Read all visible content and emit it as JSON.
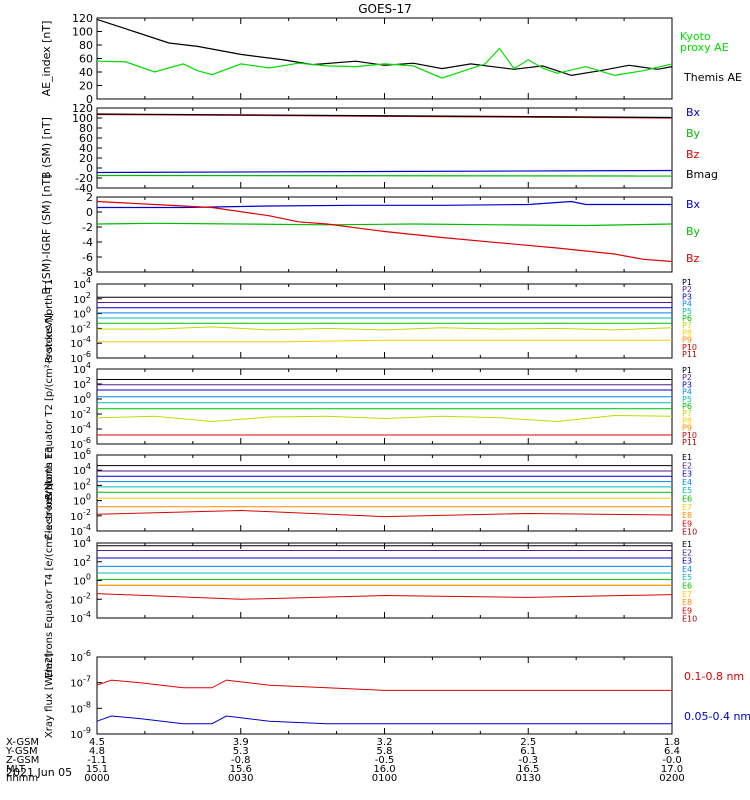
{
  "title": "GOES-17",
  "date_label": "2021 Jun 05",
  "ephemeris": {
    "row_labels": [
      "X-GSM",
      "Y-GSM",
      "Z-GSM",
      "MLT",
      "hhmm"
    ],
    "columns": [
      [
        "4.5",
        "4.8",
        "-1.1",
        "15.1",
        "0000"
      ],
      [
        "3.9",
        "5.3",
        "-0.8",
        "15.6",
        "0030"
      ],
      [
        "3.2",
        "5.8",
        "-0.5",
        "16.0",
        "0100"
      ],
      [
        "2.5",
        "6.1",
        "-0.3",
        "16.5",
        "0130"
      ],
      [
        "1.8",
        "6.4",
        "-0.0",
        "17.0",
        "0200"
      ]
    ]
  },
  "chart_data": [
    {
      "type": "line",
      "ylabel": "AE_index [nT]",
      "ylim": [
        0,
        120
      ],
      "yticks": [
        "0",
        "20",
        "40",
        "60",
        "80",
        "100",
        "120"
      ],
      "x_range_hours": [
        0,
        2
      ],
      "series": [
        {
          "name": "Themis AE",
          "color": "#000000",
          "x": [
            0,
            0.15,
            0.25,
            0.35,
            0.5,
            0.65,
            0.75,
            0.9,
            1.0,
            1.1,
            1.2,
            1.3,
            1.45,
            1.55,
            1.65,
            1.75,
            1.85,
            1.95,
            2.0
          ],
          "values": [
            118,
            97,
            83,
            78,
            66,
            58,
            51,
            56,
            50,
            53,
            45,
            52,
            44,
            49,
            35,
            42,
            50,
            44,
            48
          ]
        },
        {
          "name": "Kyoto proxy AE",
          "color": "#00dd00",
          "x": [
            0,
            0.1,
            0.2,
            0.3,
            0.35,
            0.4,
            0.5,
            0.6,
            0.7,
            0.8,
            0.9,
            1.0,
            1.1,
            1.2,
            1.3,
            1.35,
            1.4,
            1.45,
            1.5,
            1.55,
            1.6,
            1.7,
            1.8,
            1.9,
            2.0
          ],
          "values": [
            56,
            55,
            40,
            52,
            42,
            36,
            52,
            46,
            53,
            49,
            48,
            52,
            49,
            31,
            45,
            52,
            75,
            45,
            58,
            46,
            38,
            48,
            35,
            42,
            52
          ]
        }
      ]
    },
    {
      "type": "line",
      "ylabel": "B (SM) [nT]",
      "ylim": [
        -40,
        120
      ],
      "yticks": [
        "-40",
        "-20",
        "0",
        "20",
        "40",
        "60",
        "80",
        "100",
        "120"
      ],
      "x_range_hours": [
        0,
        2
      ],
      "series": [
        {
          "name": "Bx",
          "color": "#0000cc",
          "x": [
            0,
            2
          ],
          "values": [
            -9,
            -5
          ]
        },
        {
          "name": "By",
          "color": "#00bb00",
          "x": [
            0,
            2
          ],
          "values": [
            -15,
            -16
          ]
        },
        {
          "name": "Bz",
          "color": "#dd0000",
          "x": [
            0,
            2
          ],
          "values": [
            107,
            100
          ]
        },
        {
          "name": "Btot",
          "color": "#000000",
          "x": [
            0,
            2
          ],
          "values": [
            108,
            101
          ]
        }
      ],
      "legend": [
        "Bx",
        "By",
        "Bz",
        "Bmag"
      ]
    },
    {
      "type": "line",
      "ylabel": "B (SM)-IGRF (SM) [nT]",
      "ylim": [
        -8,
        2
      ],
      "yticks": [
        "-8",
        "-6",
        "-4",
        "-2",
        "0",
        "2"
      ],
      "x_range_hours": [
        0,
        2
      ],
      "series": [
        {
          "name": "Bx",
          "color": "#0000cc",
          "x": [
            0,
            0.3,
            0.6,
            0.9,
            1.2,
            1.5,
            1.65,
            1.7,
            2.0
          ],
          "values": [
            0.6,
            0.6,
            0.8,
            0.9,
            0.9,
            1.0,
            1.4,
            1.0,
            1.0
          ]
        },
        {
          "name": "By",
          "color": "#00bb00",
          "x": [
            0,
            0.2,
            0.5,
            0.8,
            1.1,
            1.4,
            1.7,
            2.0
          ],
          "values": [
            -1.6,
            -1.5,
            -1.6,
            -1.7,
            -1.6,
            -1.7,
            -1.8,
            -1.6
          ]
        },
        {
          "name": "Bz",
          "color": "#dd0000",
          "x": [
            0,
            0.1,
            0.2,
            0.4,
            0.6,
            0.7,
            0.8,
            1.0,
            1.2,
            1.4,
            1.6,
            1.8,
            1.9,
            2.0
          ],
          "values": [
            1.4,
            1.2,
            1.0,
            0.6,
            -0.5,
            -1.3,
            -1.6,
            -2.6,
            -3.4,
            -4.1,
            -4.8,
            -5.6,
            -6.3,
            -6.6
          ]
        }
      ],
      "legend": [
        "Bx",
        "By",
        "Bz"
      ]
    },
    {
      "type": "line",
      "ylabel": "Protons North T1",
      "yscale": "log",
      "ylim_exp": [
        -6,
        4
      ],
      "ytick_exps": [
        -6,
        -4,
        -2,
        0,
        2,
        4
      ],
      "x_range_hours": [
        0,
        2
      ],
      "legend": [
        "P1",
        "P2",
        "P3",
        "P4",
        "P5",
        "P6",
        "P7",
        "P8",
        "P9",
        "P10",
        "P11"
      ],
      "series": [
        {
          "name": "P1",
          "color": "#000000",
          "log_values": [
            2.2,
            2.2
          ]
        },
        {
          "name": "P2",
          "color": "#551a8b",
          "log_values": [
            1.5,
            1.5
          ]
        },
        {
          "name": "P3",
          "color": "#0000cc",
          "log_values": [
            0.8,
            0.8
          ]
        },
        {
          "name": "P4",
          "color": "#0088ee",
          "log_values": [
            0.1,
            0.1
          ]
        },
        {
          "name": "P5",
          "color": "#00bbbb",
          "log_values": [
            -0.6,
            -0.6
          ]
        },
        {
          "name": "P6",
          "color": "#00bb00",
          "log_values": [
            -1.3,
            -1.3
          ]
        },
        {
          "name": "P7",
          "color": "#bbdd00",
          "log_values": [
            -2.1,
            -2.1,
            -1.8,
            -2.2,
            -2.0,
            -2.2,
            -1.9,
            -2.1,
            -2.0,
            -2.2,
            -1.9
          ]
        },
        {
          "name": "P8",
          "color": "#ffcc00",
          "log_values": [
            -3.8,
            -3.8,
            -3.8,
            -3.6,
            -3.6,
            -3.6,
            -3.6
          ]
        }
      ]
    },
    {
      "type": "line",
      "ylabel": "Protons Equator T2 [p/(cm²-s-sr-keV)]",
      "yscale": "log",
      "ylim_exp": [
        -6,
        4
      ],
      "ytick_exps": [
        -6,
        -4,
        -2,
        0,
        2,
        4
      ],
      "x_range_hours": [
        0,
        2
      ],
      "legend": [
        "P1",
        "P2",
        "P3",
        "P4",
        "P5",
        "P6",
        "P7",
        "P8",
        "P9",
        "P10",
        "P11"
      ],
      "series": [
        {
          "name": "P1",
          "color": "#000000",
          "log_values": [
            2.6,
            2.6
          ]
        },
        {
          "name": "P2",
          "color": "#551a8b",
          "log_values": [
            1.9,
            1.9
          ]
        },
        {
          "name": "P3",
          "color": "#0000cc",
          "log_values": [
            1.2,
            1.2
          ]
        },
        {
          "name": "P4",
          "color": "#0088ee",
          "log_values": [
            0.3,
            0.3
          ]
        },
        {
          "name": "P5",
          "color": "#00bbbb",
          "log_values": [
            -0.5,
            -0.5
          ]
        },
        {
          "name": "P6",
          "color": "#00bb00",
          "log_values": [
            -1.3,
            -1.3
          ]
        },
        {
          "name": "P7",
          "color": "#bbdd00",
          "log_values": [
            -2.5,
            -2.3,
            -3.0,
            -2.4,
            -2.3,
            -2.6,
            -2.3,
            -2.5,
            -3.0,
            -2.2,
            -2.3
          ]
        },
        {
          "name": "P9",
          "color": "#dd0000",
          "log_values": [
            -4.8,
            -4.8,
            -4.8
          ]
        }
      ]
    },
    {
      "type": "line",
      "ylabel": "Electrons North T3",
      "yscale": "log",
      "ylim_exp": [
        -4,
        6
      ],
      "ytick_exps": [
        -4,
        -2,
        0,
        2,
        4,
        6
      ],
      "x_range_hours": [
        0,
        2
      ],
      "legend": [
        "E1",
        "E2",
        "E3",
        "E4",
        "E5",
        "E6",
        "E7",
        "E8",
        "E9",
        "E10"
      ],
      "series": [
        {
          "name": "E1",
          "color": "#000000",
          "log_values": [
            4.6,
            4.6
          ]
        },
        {
          "name": "E2",
          "color": "#551a8b",
          "log_values": [
            3.9,
            3.9
          ]
        },
        {
          "name": "E3",
          "color": "#0000cc",
          "log_values": [
            3.2,
            3.2
          ]
        },
        {
          "name": "E4",
          "color": "#0088ee",
          "log_values": [
            2.5,
            2.5
          ]
        },
        {
          "name": "E5",
          "color": "#00bbbb",
          "log_values": [
            1.8,
            1.8
          ]
        },
        {
          "name": "E6",
          "color": "#00bb00",
          "log_values": [
            1.1,
            1.1
          ]
        },
        {
          "name": "E7",
          "color": "#ffcc00",
          "log_values": [
            0.3,
            0.3
          ]
        },
        {
          "name": "E8",
          "color": "#ff8800",
          "log_values": [
            -0.8,
            -0.8
          ]
        },
        {
          "name": "E9",
          "color": "#dd0000",
          "log_values": [
            -1.8,
            -1.3,
            -2.1,
            -1.7,
            -1.9
          ]
        }
      ]
    },
    {
      "type": "line",
      "ylabel": "Electrons Equator T4 [e/(cm²-s-sr-keV)]",
      "yscale": "log",
      "ylim_exp": [
        -4,
        4
      ],
      "ytick_exps": [
        -4,
        -2,
        0,
        2,
        4
      ],
      "x_range_hours": [
        0,
        2
      ],
      "legend": [
        "E1",
        "E2",
        "E3",
        "E4",
        "E5",
        "E6",
        "E7",
        "E8",
        "E9",
        "E10"
      ],
      "series": [
        {
          "name": "E1",
          "color": "#000000",
          "log_values": [
            3.7,
            3.7
          ]
        },
        {
          "name": "E2",
          "color": "#551a8b",
          "log_values": [
            3.2,
            3.2
          ]
        },
        {
          "name": "E3",
          "color": "#0000cc",
          "log_values": [
            2.4,
            2.4
          ]
        },
        {
          "name": "E4",
          "color": "#0088ee",
          "log_values": [
            1.5,
            1.5
          ]
        },
        {
          "name": "E5",
          "color": "#00bbbb",
          "log_values": [
            0.8,
            0.8
          ]
        },
        {
          "name": "E6",
          "color": "#00bb00",
          "log_values": [
            0.1,
            0.1
          ]
        },
        {
          "name": "E7",
          "color": "#ffcc00",
          "log_values": [
            -0.5,
            -0.5
          ]
        },
        {
          "name": "E8",
          "color": "#ff8800",
          "log_values": [
            -0.5,
            -0.5
          ]
        },
        {
          "name": "E9",
          "color": "#dd0000",
          "log_values": [
            -1.4,
            -2.0,
            -1.6,
            -1.8,
            -1.5
          ]
        }
      ]
    },
    {
      "type": "line",
      "ylabel": "Xray flux [W/m2]",
      "yscale": "log",
      "ylim_exp": [
        -9,
        -6
      ],
      "ytick_exps": [
        -9,
        -8,
        -7,
        -6
      ],
      "x_range_hours": [
        0,
        2
      ],
      "series": [
        {
          "name": "0.1-0.8 nm",
          "color": "#dd0000",
          "x": [
            0,
            0.05,
            0.15,
            0.3,
            0.4,
            0.45,
            0.6,
            0.8,
            1.0,
            1.2,
            1.4,
            1.6,
            1.8,
            2.0
          ],
          "log_values": [
            -7.1,
            -6.9,
            -7.0,
            -7.2,
            -7.2,
            -6.9,
            -7.1,
            -7.2,
            -7.3,
            -7.3,
            -7.3,
            -7.3,
            -7.3,
            -7.3
          ]
        },
        {
          "name": "0.05-0.4 nm",
          "color": "#0000cc",
          "x": [
            0,
            0.05,
            0.15,
            0.3,
            0.4,
            0.45,
            0.6,
            0.8,
            1.0,
            1.2,
            1.4,
            1.6,
            1.8,
            2.0
          ],
          "log_values": [
            -8.5,
            -8.3,
            -8.4,
            -8.6,
            -8.6,
            -8.3,
            -8.5,
            -8.6,
            -8.6,
            -8.6,
            -8.6,
            -8.6,
            -8.6,
            -8.6
          ]
        }
      ]
    }
  ],
  "legends": {
    "ae": [
      {
        "text": "Kyoto",
        "color": "#00dd00"
      },
      {
        "text": "proxy AE",
        "color": "#00dd00"
      },
      {
        "text": "Themis AE",
        "color": "#000000"
      }
    ],
    "b_sm": [
      {
        "text": "Bx",
        "color": "#0000cc"
      },
      {
        "text": "By",
        "color": "#00bb00"
      },
      {
        "text": "Bz",
        "color": "#dd0000"
      },
      {
        "text": "Bmag",
        "color": "#000000"
      }
    ],
    "b_igrf": [
      {
        "text": "Bx",
        "color": "#0000cc"
      },
      {
        "text": "By",
        "color": "#00bb00"
      },
      {
        "text": "Bz",
        "color": "#dd0000"
      }
    ],
    "protons_colors": [
      "#000000",
      "#551a8b",
      "#0000cc",
      "#0088ee",
      "#00bbbb",
      "#00bb00",
      "#bbdd00",
      "#ffcc00",
      "#ff8800",
      "#dd0000",
      "#aa0000"
    ],
    "electrons_colors": [
      "#000000",
      "#551a8b",
      "#0000cc",
      "#0088ee",
      "#00bbbb",
      "#00bb00",
      "#ffcc00",
      "#ff8800",
      "#dd0000",
      "#aa0000"
    ],
    "xray": [
      {
        "text": "0.1-0.8 nm",
        "color": "#dd0000"
      },
      {
        "text": "0.05-0.4 nm",
        "color": "#0000cc"
      }
    ]
  }
}
